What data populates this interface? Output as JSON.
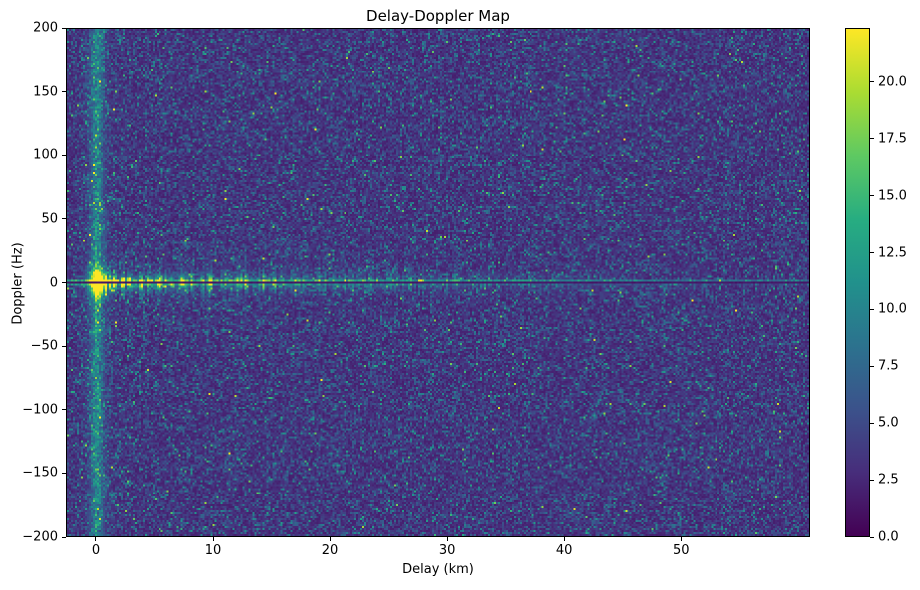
{
  "chart_data": {
    "type": "heatmap",
    "title": "Delay-Doppler Map",
    "xlabel": "Delay (km)",
    "ylabel": "Doppler (Hz)",
    "x_range": [
      -2.56,
      61.0
    ],
    "y_range": [
      -200,
      200
    ],
    "x_ticks": {
      "values": [
        0,
        10,
        20,
        30,
        40,
        50
      ],
      "labels": [
        "0",
        "10",
        "20",
        "30",
        "40",
        "50"
      ]
    },
    "y_ticks": {
      "values": [
        200,
        150,
        100,
        50,
        0,
        -50,
        -100,
        -150,
        -200
      ],
      "labels": [
        "200",
        "150",
        "100",
        "50",
        "0",
        "−50",
        "−100",
        "−150",
        "−200"
      ]
    },
    "colorbar": {
      "vmin": 0.0,
      "vmax": 22.37,
      "ticks": {
        "values": [
          0.0,
          2.5,
          5.0,
          7.5,
          10.0,
          12.5,
          15.0,
          17.5,
          20.0
        ],
        "labels": [
          "0.0",
          "2.5",
          "5.0",
          "7.5",
          "10.0",
          "12.5",
          "15.0",
          "17.5",
          "20.0"
        ]
      }
    },
    "colormap": {
      "name": "viridis",
      "anchors": [
        [
          0.0,
          "#440154"
        ],
        [
          0.125,
          "#472d7b"
        ],
        [
          0.25,
          "#3b528b"
        ],
        [
          0.375,
          "#2c728e"
        ],
        [
          0.5,
          "#21918c"
        ],
        [
          0.625,
          "#27ad81"
        ],
        [
          0.75,
          "#5ec962"
        ],
        [
          0.875,
          "#aadc32"
        ],
        [
          1.0,
          "#fde725"
        ]
      ]
    },
    "colors": {
      "background": "#ffffff",
      "spines": "#000000",
      "text": "#000000"
    },
    "grid": {
      "nx": 372,
      "ny": 255
    },
    "noise": {
      "seed": 12345,
      "floor": 1.8,
      "exp_mean": 2.3
    },
    "features": {
      "origin_peak": {
        "delay_km": 0.0,
        "doppler_hz": 0.0,
        "amp": 21.0,
        "sigma_km": 0.5,
        "sigma_hz": 6.5
      },
      "zero_delay_stripe": {
        "delay_km": 0.0,
        "amp": 6.0,
        "sigma_km": 0.38,
        "halo_amp": 1.6,
        "halo_sigma_km": 1.1
      },
      "zero_doppler_band": {
        "amp": 11.5,
        "decay_km": 18.0,
        "sigma_hz": 4.2,
        "skirt_sigma_hz": 9.0,
        "max_delay_km": 47.0
      },
      "zero_doppler_dark_line": {
        "value": 1.0,
        "jitter": 0.7
      },
      "sideline_upper": {
        "amp": 6.0,
        "decay_km": 60.0,
        "base": 2.0
      },
      "sideline_lower": {
        "amp": 5.0,
        "decay_km": 25.0,
        "base": 0.6
      },
      "vertical_smears": {
        "amp_fraction": 0.3,
        "sigma_hz": 28.0,
        "decay_km": 25.0
      }
    }
  }
}
